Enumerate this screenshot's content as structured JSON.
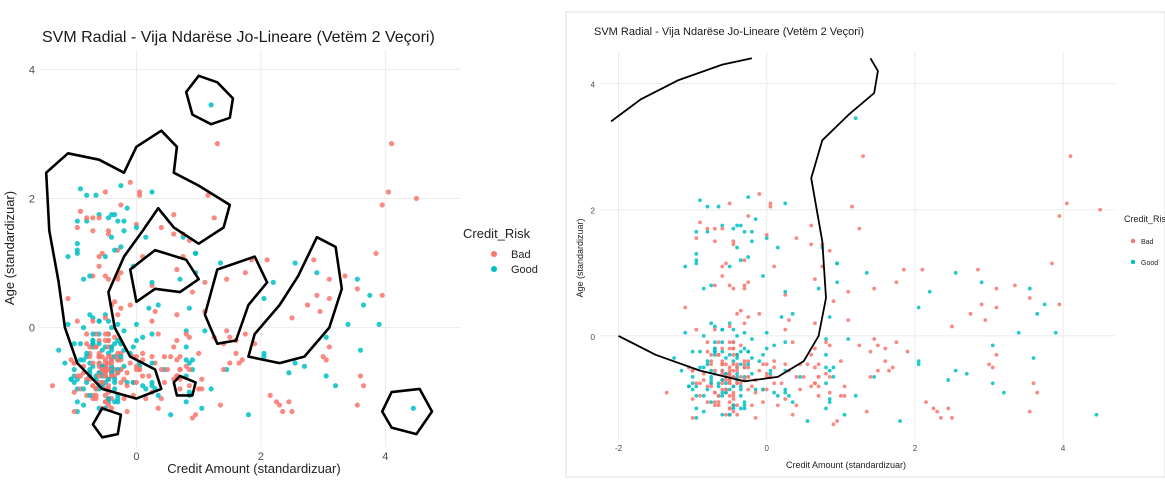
{
  "colors": {
    "bad": "#F8766D",
    "good": "#00BFC4",
    "boundary": "#000000",
    "grid": "#ebebeb"
  },
  "legend": {
    "title": "Credit_Risk",
    "items": [
      "Bad",
      "Good"
    ]
  },
  "chart_data": [
    {
      "type": "scatter",
      "title": "SVM Radial - Vija Ndarëse Jo-Lineare (Vetëm 2 Veçori)",
      "xlabel": "Credit Amount (standardizuar)",
      "ylabel": "Age (standardizuar)",
      "xlim": [
        -1.55,
        5.2
      ],
      "ylim": [
        -1.85,
        4.3
      ],
      "x_ticks": [
        0,
        2,
        4
      ],
      "y_ticks": [
        0,
        2,
        4
      ],
      "series": [
        {
          "name": "Bad",
          "color": "#F8766D"
        },
        {
          "name": "Good",
          "color": "#00BFC4"
        }
      ],
      "decision_boundary": "non-linear (several closed regions)"
    },
    {
      "type": "scatter",
      "title": "SVM Radial - Vija Ndarëse Jo-Lineare (Vetëm 2 Veçori)",
      "xlabel": "Credit Amount (standardizuar)",
      "ylabel": "Age (standardizuar)",
      "xlim": [
        -2.25,
        4.7
      ],
      "ylim": [
        -1.65,
        4.5
      ],
      "x_ticks": [
        -2,
        0,
        2,
        4
      ],
      "y_ticks": [
        0,
        2,
        4
      ],
      "series": [
        {
          "name": "Bad",
          "color": "#F8766D"
        },
        {
          "name": "Good",
          "color": "#00BFC4"
        }
      ],
      "decision_boundary": "non-linear (single curved line)"
    }
  ]
}
